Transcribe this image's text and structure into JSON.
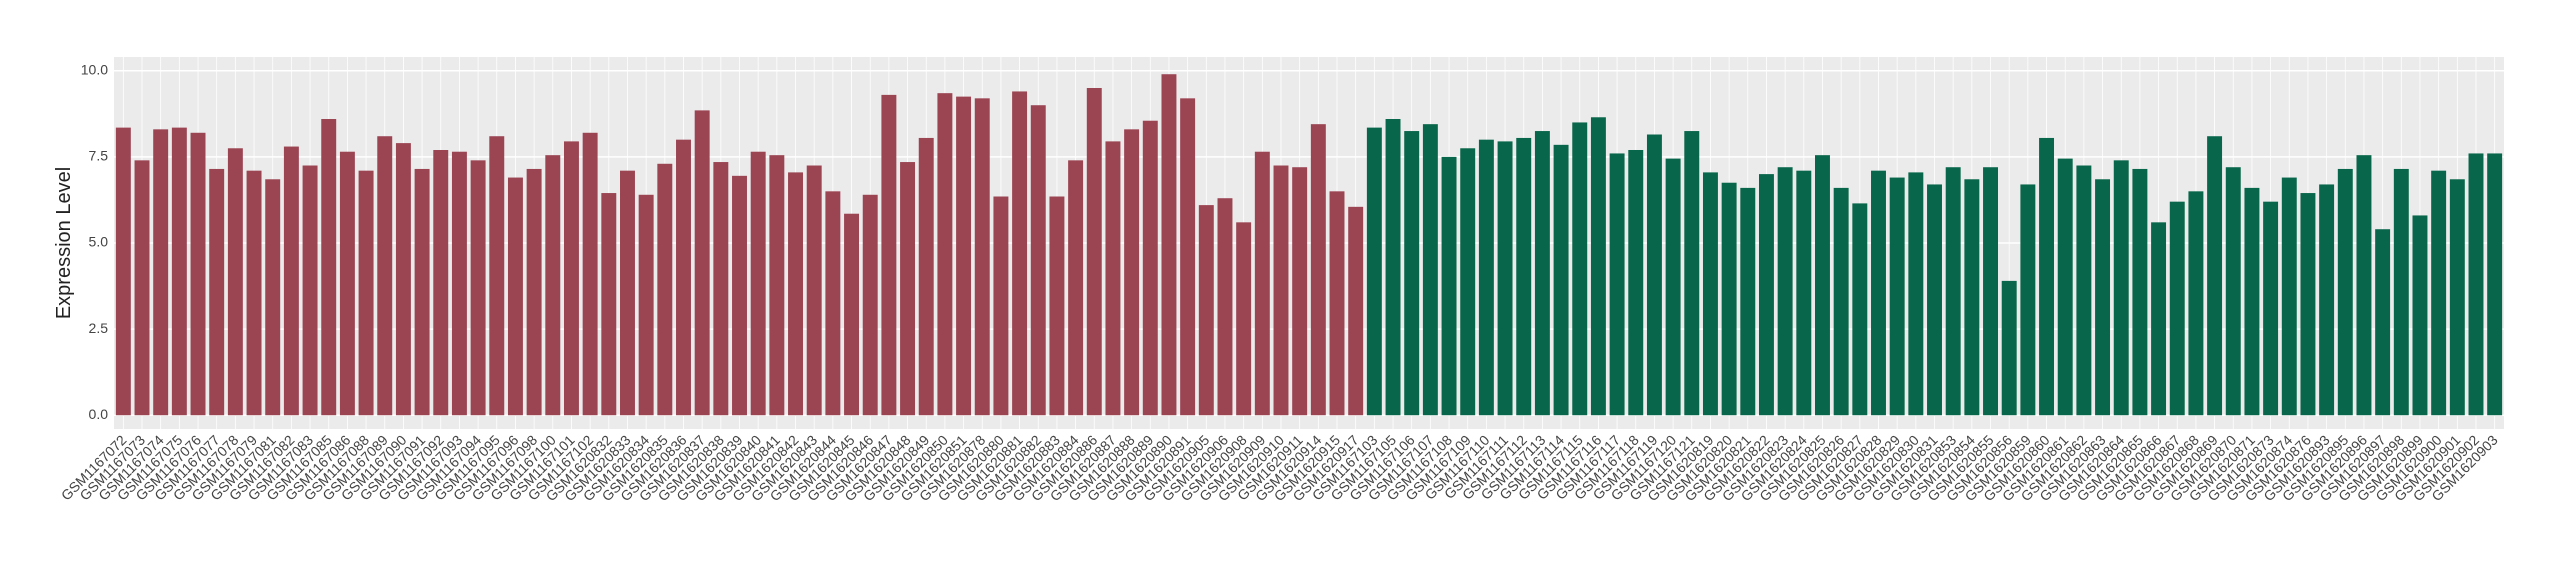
{
  "chart_data": {
    "type": "bar",
    "y_label": "Expression Level",
    "ylim": [
      -0.4,
      10.4
    ],
    "yticks": [
      {
        "value": 0,
        "label": "0.0"
      },
      2.5,
      {
        "value": 5,
        "label": "5.0"
      },
      7.5,
      {
        "value": 10,
        "label": "10.0"
      }
    ],
    "grid": true,
    "series": [
      {
        "color": "#9b4452",
        "categories": [
          "GSM1167072",
          "GSM1167073",
          "GSM1167074",
          "GSM1167075",
          "GSM1167076",
          "GSM1167077",
          "GSM1167078",
          "GSM1167079",
          "GSM1167081",
          "GSM1167082",
          "GSM1167083",
          "GSM1167085",
          "GSM1167086",
          "GSM1167088",
          "GSM1167089",
          "GSM1167090",
          "GSM1167091",
          "GSM1167092",
          "GSM1167093",
          "GSM1167094",
          "GSM1167095",
          "GSM1167096",
          "GSM1167098",
          "GSM1167100",
          "GSM1167101",
          "GSM1167102",
          "GSM1620832",
          "GSM1620833",
          "GSM1620834",
          "GSM1620835",
          "GSM1620836",
          "GSM1620837",
          "GSM1620838",
          "GSM1620839",
          "GSM1620840",
          "GSM1620841",
          "GSM1620842",
          "GSM1620843",
          "GSM1620844",
          "GSM1620845",
          "GSM1620846",
          "GSM1620847",
          "GSM1620848",
          "GSM1620849",
          "GSM1620850",
          "GSM1620851",
          "GSM1620878",
          "GSM1620880",
          "GSM1620881",
          "GSM1620882",
          "GSM1620883",
          "GSM1620884",
          "GSM1620886",
          "GSM1620887",
          "GSM1620888",
          "GSM1620889",
          "GSM1620890",
          "GSM1620891",
          "GSM1620905",
          "GSM1620906",
          "GSM1620908",
          "GSM1620909",
          "GSM1620910",
          "GSM1620911",
          "GSM1620914",
          "GSM1620915",
          "GSM1620917"
        ],
        "values": [
          8.35,
          7.4,
          8.3,
          8.35,
          8.2,
          7.15,
          7.75,
          7.1,
          6.85,
          7.8,
          7.25,
          8.6,
          7.65,
          7.1,
          8.1,
          7.9,
          7.15,
          7.7,
          7.65,
          7.4,
          8.1,
          6.9,
          7.15,
          7.55,
          7.95,
          8.2,
          6.45,
          7.1,
          6.4,
          7.3,
          8.0,
          8.85,
          7.35,
          6.95,
          7.65,
          7.55,
          7.05,
          7.25,
          6.5,
          5.85,
          6.4,
          9.3,
          7.35,
          8.05,
          9.35,
          9.25,
          9.2,
          6.35,
          9.4,
          9.0,
          6.35,
          7.4,
          9.5,
          7.95,
          8.3,
          8.55,
          9.9,
          9.2,
          6.1,
          6.3,
          5.6,
          7.65,
          7.25,
          7.2,
          8.45,
          6.5,
          6.05
        ]
      },
      {
        "color": "#08664a",
        "categories": [
          "GSM1167103",
          "GSM1167105",
          "GSM1167106",
          "GSM1167107",
          "GSM1167108",
          "GSM1167109",
          "GSM1167110",
          "GSM1167111",
          "GSM1167112",
          "GSM1167113",
          "GSM1167114",
          "GSM1167115",
          "GSM1167116",
          "GSM1167117",
          "GSM1167118",
          "GSM1167119",
          "GSM1167120",
          "GSM1167121",
          "GSM1620819",
          "GSM1620820",
          "GSM1620821",
          "GSM1620822",
          "GSM1620823",
          "GSM1620824",
          "GSM1620825",
          "GSM1620826",
          "GSM1620827",
          "GSM1620828",
          "GSM1620829",
          "GSM1620830",
          "GSM1620831",
          "GSM1620853",
          "GSM1620854",
          "GSM1620855",
          "GSM1620856",
          "GSM1620859",
          "GSM1620860",
          "GSM1620861",
          "GSM1620862",
          "GSM1620863",
          "GSM1620864",
          "GSM1620865",
          "GSM1620866",
          "GSM1620867",
          "GSM1620868",
          "GSM1620869",
          "GSM1620870",
          "GSM1620871",
          "GSM1620873",
          "GSM1620874",
          "GSM1620876",
          "GSM1620893",
          "GSM1620895",
          "GSM1620896",
          "GSM1620897",
          "GSM1620898",
          "GSM1620899",
          "GSM1620900",
          "GSM1620901",
          "GSM1620902",
          "GSM1620903"
        ],
        "values": [
          8.35,
          8.6,
          8.25,
          8.45,
          7.5,
          7.75,
          8.0,
          7.95,
          8.05,
          8.25,
          7.85,
          8.5,
          8.65,
          7.6,
          7.7,
          8.15,
          7.45,
          8.25,
          7.05,
          6.75,
          6.6,
          7.0,
          7.2,
          7.1,
          7.55,
          6.6,
          6.15,
          7.1,
          6.9,
          7.05,
          6.7,
          7.2,
          6.85,
          7.2,
          3.9,
          6.7,
          8.05,
          7.45,
          7.25,
          6.85,
          7.4,
          7.15,
          5.6,
          6.2,
          6.5,
          8.1,
          7.2,
          6.6,
          6.2,
          6.9,
          6.45,
          6.7,
          7.15,
          7.55,
          5.4,
          7.15,
          5.8,
          7.1,
          6.85,
          7.6,
          7.6
        ]
      }
    ]
  }
}
